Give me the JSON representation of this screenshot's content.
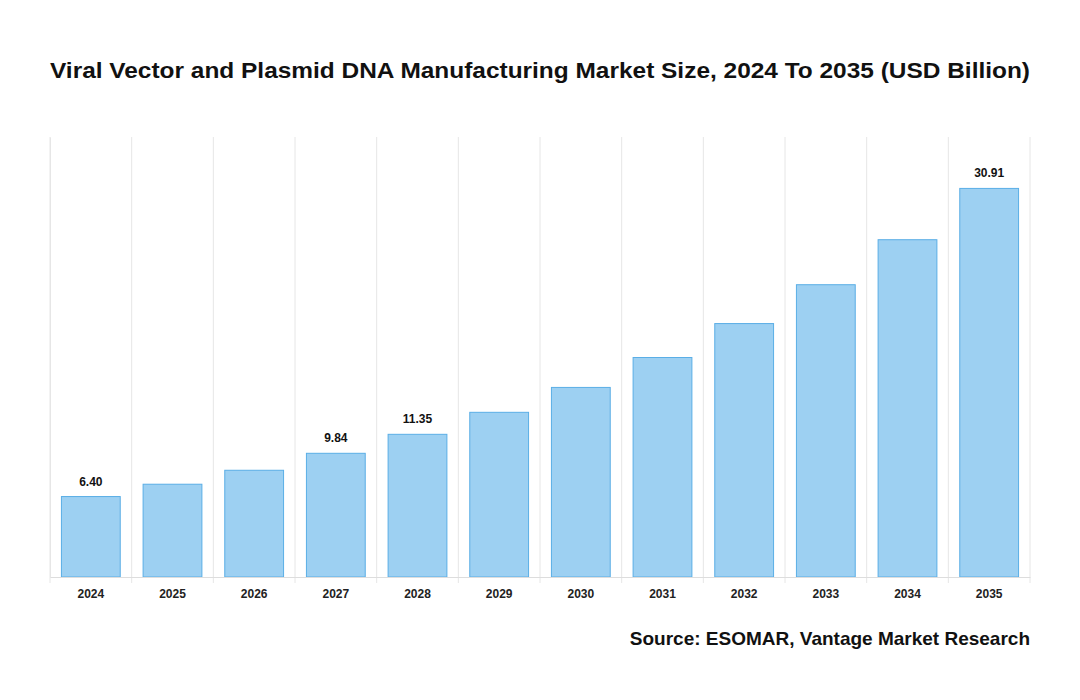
{
  "chart_data": {
    "type": "bar",
    "title": "Viral Vector and Plasmid DNA Manufacturing Market Size, 2024 To 2035 (USD Billion)",
    "source": "Source: ESOMAR, Vantage Market Research",
    "categories": [
      "2024",
      "2025",
      "2026",
      "2027",
      "2028",
      "2029",
      "2030",
      "2031",
      "2032",
      "2033",
      "2034",
      "2035"
    ],
    "values": [
      6.4,
      7.38,
      8.49,
      9.84,
      11.35,
      13.1,
      15.08,
      17.46,
      20.16,
      23.25,
      26.83,
      30.91
    ],
    "value_labels": [
      "6.40",
      null,
      null,
      "9.84",
      "11.35",
      null,
      null,
      null,
      null,
      null,
      null,
      "30.91"
    ],
    "data_labels": true,
    "color": "#9dd0f2",
    "ylim": [
      0,
      35
    ],
    "yticks": [],
    "grid": true,
    "tick_labels": "x"
  }
}
